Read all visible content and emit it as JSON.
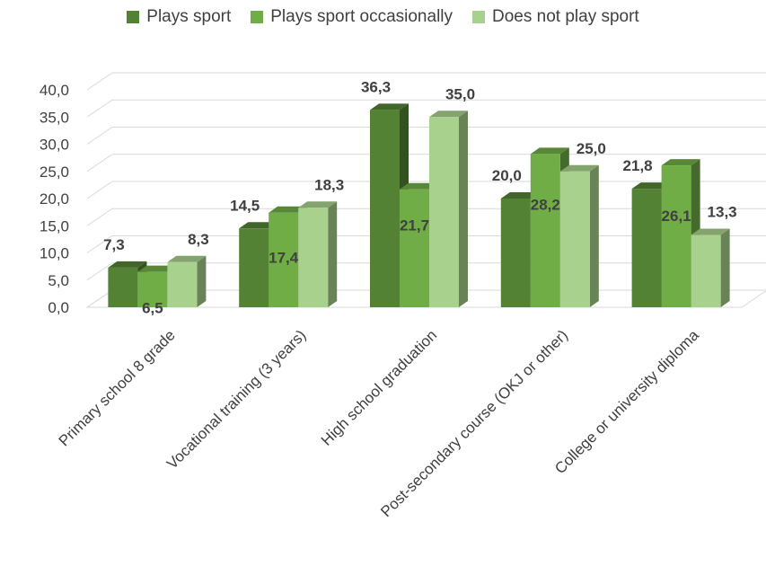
{
  "chart_data": {
    "type": "bar",
    "categories": [
      "Primary school 8 grade",
      "Vocational training (3 years)",
      "High school graduation",
      "Post-secondary course (OKJ or other)",
      "College or university diploma"
    ],
    "series": [
      {
        "name": "Plays sport",
        "values": [
          7.3,
          14.5,
          36.3,
          20.0,
          21.8
        ],
        "labels": [
          "7,3",
          "14,5",
          "36,3",
          "20,0",
          "21,8"
        ],
        "color": "#548235"
      },
      {
        "name": "Plays sport occasionally",
        "values": [
          6.5,
          17.4,
          21.7,
          28.2,
          26.1
        ],
        "labels": [
          "6,5",
          "17,4",
          "21,7",
          "28,2",
          "26,1"
        ],
        "color": "#70ad47"
      },
      {
        "name": "Does not play sport",
        "values": [
          8.3,
          18.3,
          35.0,
          25.0,
          13.3
        ],
        "labels": [
          "8,3",
          "18,3",
          "35,0",
          "25,0",
          "13,3"
        ],
        "color": "#a9d18e"
      }
    ],
    "yticks": [
      "0,0",
      "5,0",
      "10,0",
      "15,0",
      "20,0",
      "25,0",
      "30,0",
      "35,0",
      "40,0"
    ],
    "ylim": [
      0,
      40
    ],
    "legend": "top",
    "grid": true,
    "style": "3d-clustered-column"
  }
}
